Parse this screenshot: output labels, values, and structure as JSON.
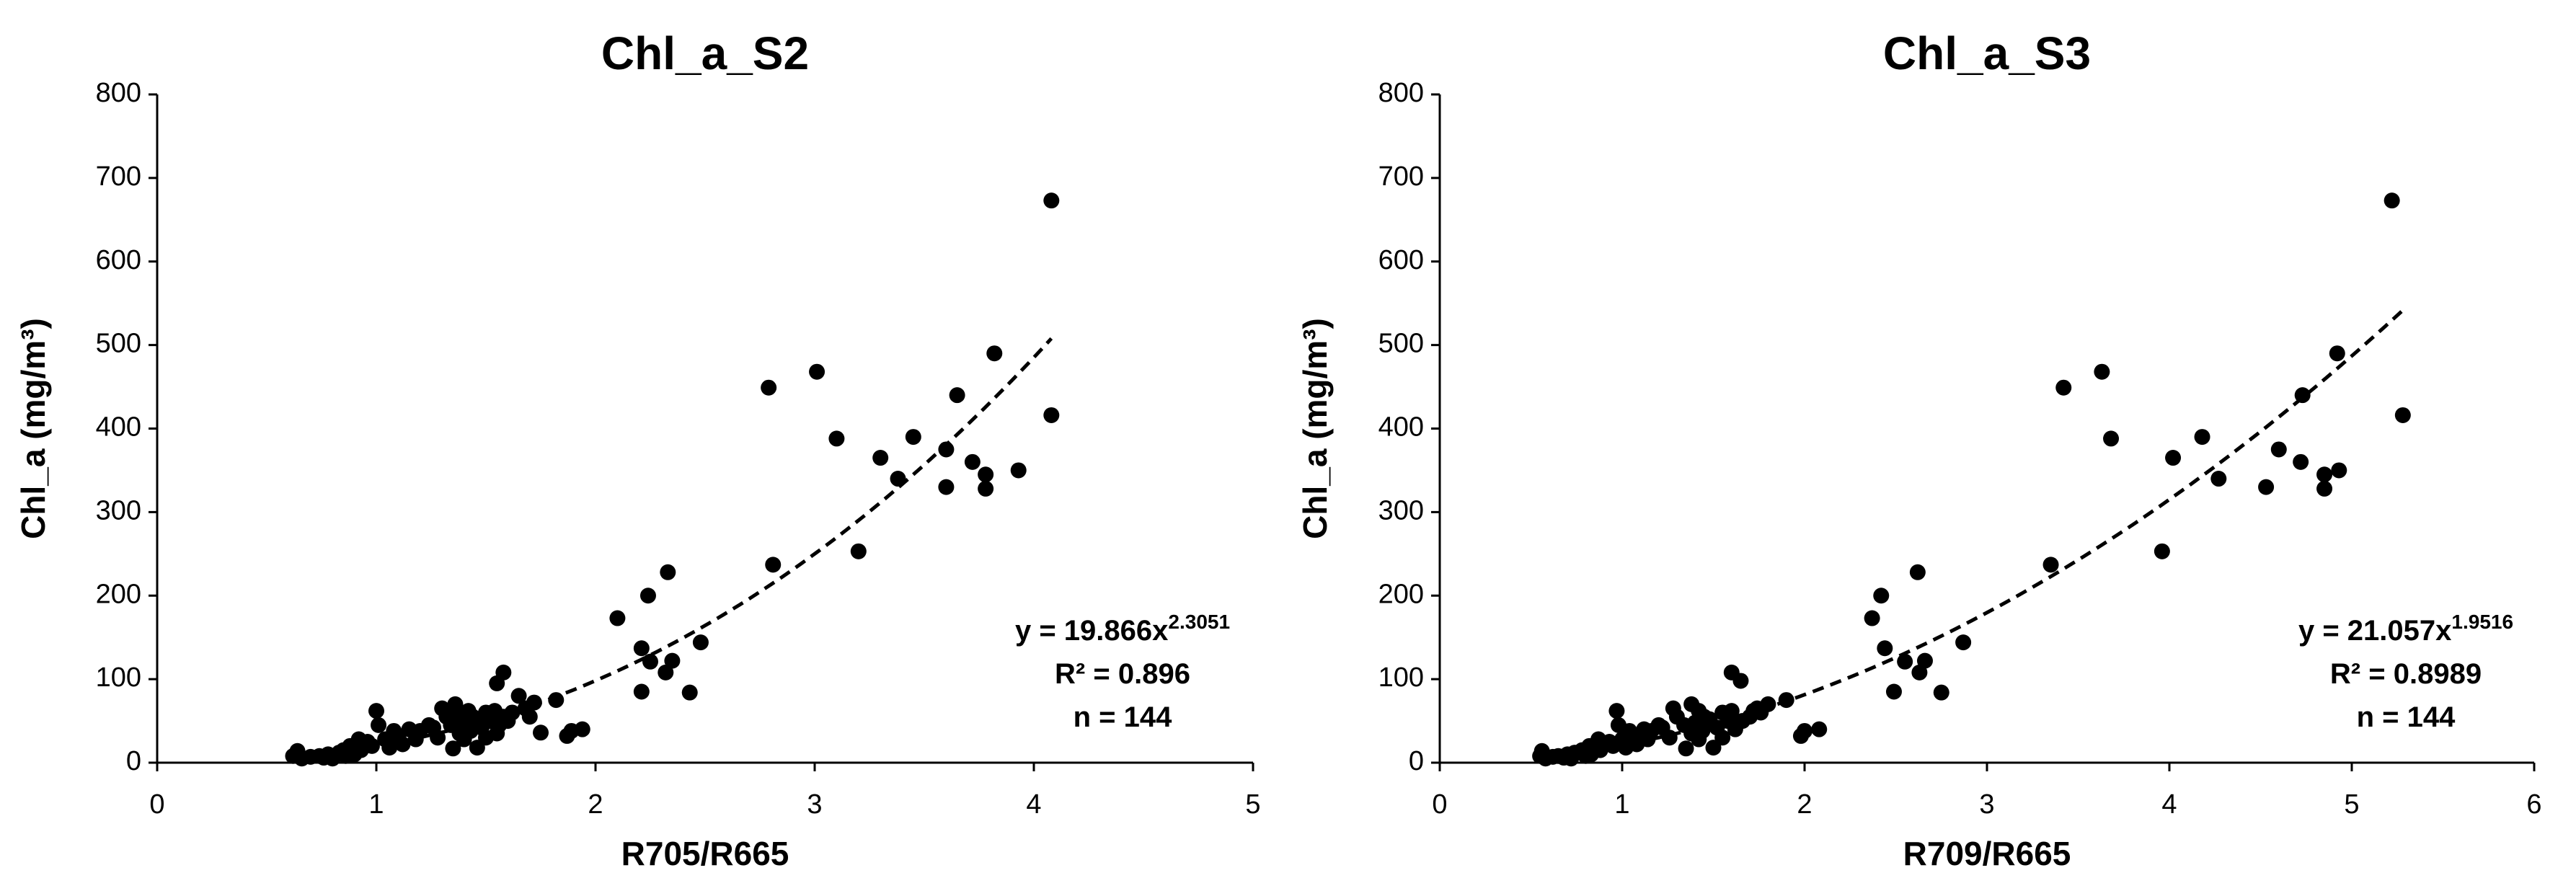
{
  "chart_data": [
    {
      "type": "scatter",
      "title": "Chl_a_S2",
      "x_label": "R705/R665",
      "y_label": "Chl_a (mg/m³)",
      "xlim": [
        0,
        5
      ],
      "xticks": [
        0,
        1,
        2,
        3,
        4,
        5
      ],
      "ylim": [
        0,
        800
      ],
      "yticks": [
        0,
        100,
        200,
        300,
        400,
        500,
        600,
        700,
        800
      ],
      "color": "#000000",
      "fit": {
        "a": 19.866,
        "b": 2.3051,
        "equation": "y = 19.866x",
        "exponent": "2.3051",
        "r2": "R² = 0.896",
        "n": "n = 144"
      },
      "x": [
        4.08,
        4.08,
        3.82,
        3.93,
        3.78,
        3.78,
        3.72,
        3.65,
        3.6,
        3.6,
        3.45,
        3.38,
        3.3,
        3.2,
        3.1,
        3.01,
        2.79,
        2.81,
        2.48,
        2.43,
        2.35,
        2.33,
        2.32,
        2.25,
        2.24,
        2.21,
        2.21,
        2.1,
        1.94,
        1.89,
        1.87,
        1.82,
        1.75,
        1.72,
        1.68,
        1.65,
        1.62,
        1.58,
        1.58,
        1.55,
        1.55,
        1.52,
        1.5,
        1.48,
        1.46,
        1.45,
        1.43,
        1.42,
        1.4,
        1.38,
        1.37,
        1.36,
        1.35,
        1.34,
        1.32,
        1.28,
        1.26,
        1.24,
        1.2,
        1.18,
        1.15,
        1.12,
        1.1,
        1.08,
        1.06,
        1.04,
        1.01,
        1.0,
        0.98,
        0.96,
        0.93,
        0.92,
        0.9,
        0.88,
        0.86,
        0.85,
        0.83,
        0.8,
        0.78,
        0.76,
        0.74,
        0.7,
        0.66,
        0.64,
        0.62,
        1.54,
        1.5,
        1.44,
        1.6,
        1.7,
        1.3,
        1.4,
        1.56
      ],
      "values": [
        673,
        416,
        490,
        350,
        345,
        328,
        360,
        440,
        375,
        330,
        390,
        340,
        365,
        253,
        388,
        468,
        449,
        237,
        144,
        84,
        122,
        228,
        108,
        121,
        200,
        137,
        85,
        173,
        40,
        38,
        32,
        75,
        36,
        72,
        65,
        80,
        60,
        108,
        55,
        95,
        35,
        50,
        60,
        42,
        18,
        52,
        38,
        62,
        48,
        35,
        60,
        70,
        17,
        45,
        55,
        30,
        42,
        45,
        38,
        28,
        40,
        22,
        30,
        38,
        18,
        28,
        45,
        62,
        20,
        25,
        15,
        28,
        10,
        20,
        8,
        15,
        12,
        5,
        10,
        6,
        8,
        7,
        5,
        14,
        8,
        62,
        30,
        55,
        50,
        55,
        65,
        28,
        45
      ]
    },
    {
      "type": "scatter",
      "title": "Chl_a_S3",
      "x_label": "R709/R665",
      "y_label": "Chl_a (mg/m³)",
      "xlim": [
        0,
        6
      ],
      "xticks": [
        0,
        1,
        2,
        3,
        4,
        5,
        6
      ],
      "ylim": [
        0,
        800
      ],
      "yticks": [
        0,
        100,
        200,
        300,
        400,
        500,
        600,
        700,
        800
      ],
      "color": "#000000",
      "fit": {
        "a": 21.057,
        "b": 1.9516,
        "equation": "y = 21.057x",
        "exponent": "1.9516",
        "r2": "R² = 0.8989",
        "n": "n = 144"
      },
      "x": [
        5.22,
        5.28,
        4.92,
        4.93,
        4.85,
        4.85,
        4.72,
        4.73,
        4.6,
        4.53,
        4.18,
        4.27,
        4.02,
        3.96,
        3.68,
        3.63,
        3.42,
        3.35,
        2.87,
        2.75,
        2.66,
        2.62,
        2.63,
        2.55,
        2.42,
        2.44,
        2.49,
        2.37,
        2.08,
        2.0,
        1.98,
        1.9,
        1.8,
        1.76,
        1.74,
        1.7,
        1.65,
        1.6,
        1.62,
        1.58,
        1.55,
        1.52,
        1.5,
        1.48,
        1.44,
        1.42,
        1.4,
        1.38,
        1.38,
        1.35,
        1.34,
        1.3,
        1.26,
        1.22,
        1.2,
        1.16,
        1.14,
        1.12,
        1.08,
        1.06,
        1.04,
        1.02,
        1.0,
        0.98,
        0.97,
        0.95,
        0.93,
        0.88,
        0.87,
        0.83,
        0.82,
        0.8,
        0.78,
        0.74,
        0.72,
        0.7,
        0.68,
        0.65,
        0.62,
        0.58,
        0.56,
        0.55,
        1.6,
        1.55,
        1.45,
        1.66,
        1.72,
        1.28,
        1.42,
        1.62
      ],
      "values": [
        673,
        416,
        490,
        350,
        345,
        328,
        360,
        440,
        375,
        330,
        390,
        340,
        365,
        253,
        388,
        468,
        449,
        237,
        144,
        84,
        122,
        228,
        108,
        121,
        200,
        137,
        85,
        173,
        40,
        38,
        32,
        75,
        70,
        60,
        65,
        55,
        98,
        108,
        40,
        50,
        60,
        42,
        18,
        52,
        38,
        62,
        48,
        35,
        70,
        17,
        45,
        55,
        30,
        42,
        45,
        38,
        28,
        40,
        22,
        30,
        38,
        18,
        28,
        45,
        62,
        20,
        25,
        15,
        28,
        10,
        20,
        8,
        15,
        12,
        5,
        10,
        6,
        8,
        7,
        5,
        14,
        8,
        62,
        30,
        55,
        50,
        62,
        65,
        28,
        45
      ]
    }
  ]
}
